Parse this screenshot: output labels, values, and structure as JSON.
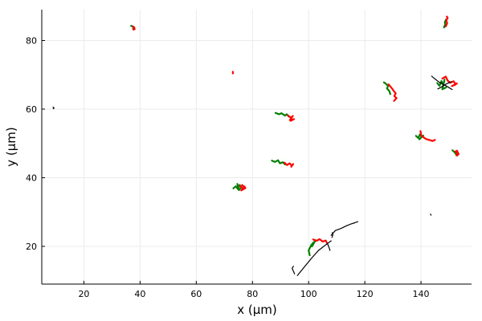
{
  "chart_data": {
    "type": "line",
    "title": "",
    "xlabel": "x (μm)",
    "ylabel": "y (μm)",
    "xlim": [
      5,
      158
    ],
    "ylim": [
      9,
      89
    ],
    "xticks": [
      20,
      40,
      60,
      80,
      100,
      120,
      140
    ],
    "yticks": [
      20,
      40,
      60,
      80
    ],
    "grid": true,
    "legend": "none",
    "colors": {
      "green": "#008000",
      "red": "#ff0000",
      "black": "#000000",
      "grid": "#ebebeb"
    },
    "series": [
      {
        "color": "green",
        "x": [
          36.8,
          37.4,
          37.9,
          37.5
        ],
        "y": [
          84.3,
          84.0,
          83.8,
          83.4
        ]
      },
      {
        "color": "red",
        "x": [
          37.5,
          38.0,
          37.6,
          38.1
        ],
        "y": [
          84.1,
          83.7,
          83.2,
          83.3
        ]
      },
      {
        "color": "red",
        "x": [
          73.0,
          73.1,
          73.0
        ],
        "y": [
          70.9,
          70.6,
          70.4
        ]
      },
      {
        "color": "black",
        "x": [
          9.0,
          9.4,
          9.1
        ],
        "y": [
          60.6,
          60.3,
          60.1
        ]
      },
      {
        "color": "green",
        "x": [
          88.2,
          89.5,
          90.3,
          91.6,
          92.2,
          93.0
        ],
        "y": [
          58.9,
          58.5,
          58.8,
          58.1,
          58.5,
          57.8
        ]
      },
      {
        "color": "red",
        "x": [
          92.6,
          93.7,
          94.4,
          93.3,
          94.8,
          93.6
        ],
        "y": [
          58.2,
          57.5,
          58.0,
          56.8,
          57.1,
          56.6
        ]
      },
      {
        "color": "green",
        "x": [
          86.9,
          88.0,
          89.1,
          89.8,
          90.8,
          91.6
        ],
        "y": [
          45.0,
          44.6,
          45.1,
          44.2,
          44.5,
          43.9
        ]
      },
      {
        "color": "red",
        "x": [
          91.4,
          92.3,
          93.2,
          94.0,
          94.5,
          93.8
        ],
        "y": [
          44.4,
          43.7,
          44.2,
          43.5,
          44.0,
          43.2
        ]
      },
      {
        "color": "green",
        "x": [
          73.2,
          74.1,
          74.8,
          75.4,
          76.1,
          75.2,
          74.6
        ],
        "y": [
          36.9,
          37.5,
          36.7,
          37.9,
          37.3,
          36.4,
          38.2
        ]
      },
      {
        "color": "red",
        "x": [
          75.6,
          76.5,
          77.2,
          76.0,
          77.5,
          76.3
        ],
        "y": [
          37.6,
          36.8,
          37.4,
          36.3,
          37.0,
          37.9
        ]
      },
      {
        "color": "green",
        "x": [
          126.8,
          127.5,
          128.3,
          127.9,
          128.7,
          129.1
        ],
        "y": [
          67.8,
          67.4,
          66.8,
          66.0,
          65.3,
          64.4
        ]
      },
      {
        "color": "red",
        "x": [
          128.5,
          129.6,
          130.3,
          131.0,
          130.5,
          131.3,
          130.4
        ],
        "y": [
          67.2,
          66.1,
          65.3,
          64.6,
          63.8,
          63.2,
          62.4
        ]
      },
      {
        "color": "green",
        "x": [
          138.2,
          139.0,
          139.6,
          140.2,
          139.4,
          140.8
        ],
        "y": [
          52.2,
          51.6,
          52.6,
          51.9,
          51.2,
          52.3
        ]
      },
      {
        "color": "red",
        "x": [
          139.8,
          140.1,
          141.2,
          142.0,
          143.0,
          144.1,
          145.0
        ],
        "y": [
          53.6,
          52.3,
          51.6,
          51.2,
          51.0,
          50.7,
          51.0
        ]
      },
      {
        "color": "green",
        "x": [
          151.2,
          152.0,
          152.5,
          151.8,
          153.0
        ],
        "y": [
          48.0,
          47.4,
          46.8,
          47.6,
          46.5
        ]
      },
      {
        "color": "red",
        "x": [
          152.2,
          153.1,
          152.6,
          153.4,
          152.8
        ],
        "y": [
          47.7,
          47.2,
          46.5,
          46.9,
          47.9
        ]
      },
      {
        "color": "green",
        "x": [
          145.8,
          146.6,
          147.3,
          147.9,
          148.4,
          147.6,
          148.9
        ],
        "y": [
          67.6,
          66.8,
          68.2,
          67.0,
          68.6,
          65.8,
          66.3
        ]
      },
      {
        "color": "red",
        "x": [
          147.6,
          148.8,
          149.5,
          150.4,
          151.6,
          152.4,
          151.0,
          152.8
        ],
        "y": [
          68.9,
          69.5,
          68.3,
          67.7,
          68.1,
          67.2,
          66.7,
          67.5
        ]
      },
      {
        "color": "green",
        "x": [
          148.2,
          148.6,
          148.5,
          149.0
        ],
        "y": [
          83.8,
          84.6,
          85.4,
          86.2
        ]
      },
      {
        "color": "red",
        "x": [
          148.8,
          149.3,
          149.0,
          149.5,
          149.2
        ],
        "y": [
          84.1,
          85.0,
          85.9,
          86.6,
          87.0
        ]
      },
      {
        "color": "black",
        "x": [
          143.8,
          145.0,
          146.4,
          148.0,
          149.5,
          151.1
        ],
        "y": [
          69.6,
          68.8,
          67.9,
          67.2,
          66.5,
          65.7
        ]
      },
      {
        "color": "black",
        "x": [
          146.0,
          147.6,
          149.2,
          150.8
        ],
        "y": [
          65.9,
          66.6,
          67.4,
          68.0
        ]
      },
      {
        "color": "green",
        "x": [
          100.4,
          100.0,
          100.9,
          101.8,
          101.2,
          102.5
        ],
        "y": [
          17.4,
          18.8,
          20.3,
          21.2,
          20.0,
          21.8
        ]
      },
      {
        "color": "red",
        "x": [
          101.6,
          102.8,
          103.9,
          105.0,
          106.1,
          106.5
        ],
        "y": [
          22.0,
          21.6,
          22.1,
          21.4,
          21.7,
          21.0
        ]
      },
      {
        "color": "black",
        "x": [
          96.0,
          98.5,
          101.0,
          103.5,
          106.0,
          108.0
        ],
        "y": [
          11.5,
          14.0,
          16.5,
          18.8,
          20.4,
          21.6
        ]
      },
      {
        "color": "black",
        "x": [
          108.0,
          109.5,
          111.5,
          113.5,
          115.0,
          116.5,
          117.5
        ],
        "y": [
          23.2,
          24.6,
          25.2,
          26.0,
          26.5,
          26.9,
          27.2
        ]
      },
      {
        "color": "black",
        "x": [
          108.3,
          108.6,
          108.4
        ],
        "y": [
          22.6,
          23.3,
          24.0
        ]
      },
      {
        "color": "black",
        "x": [
          95.0,
          94.1,
          94.6
        ],
        "y": [
          12.0,
          13.6,
          14.2
        ]
      },
      {
        "color": "black",
        "x": [
          106.8,
          107.3,
          107.6
        ],
        "y": [
          20.6,
          19.6,
          18.8
        ]
      },
      {
        "color": "black",
        "x": [
          143.4,
          143.6
        ],
        "y": [
          29.4,
          29.1
        ]
      }
    ]
  }
}
